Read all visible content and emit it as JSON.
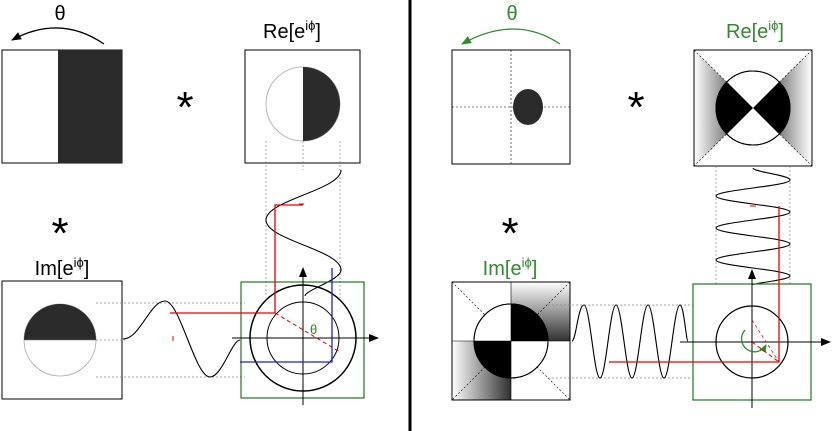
{
  "colors": {
    "ink": "#000000",
    "fill_dark": "#2b2b2b",
    "frame_green": "#1e7a1e",
    "label_green": "#2e8b2e",
    "path_red": "#e00000",
    "path_blue": "#1a1aff",
    "guide_gray": "#888888"
  },
  "left_panel": {
    "theta_label": "θ",
    "re_label_base": "Re[e",
    "re_label_sup": "iϕ",
    "re_label_close": "]",
    "im_label_base": "Im[e",
    "im_label_sup": "iϕ",
    "im_label_close": "]",
    "star": "*",
    "circle_theta_label": "θ"
  },
  "right_panel": {
    "theta_label": "θ",
    "re_label_base": "Re[e",
    "re_label_sup": "iϕ",
    "re_label_close": "]",
    "im_label_base": "Im[e",
    "im_label_sup": "iϕ",
    "im_label_close": "]",
    "star": "*"
  },
  "icons": {
    "rotation_arrow": "curved-arrow-icon",
    "axis_arrow": "arrowhead-icon"
  }
}
